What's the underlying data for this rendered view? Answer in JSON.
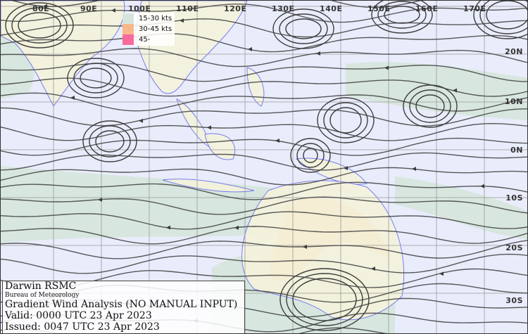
{
  "map": {
    "longitude_labels": [
      "80E",
      "90E",
      "100E",
      "110E",
      "120E",
      "130E",
      "140E",
      "150E",
      "160E",
      "170E"
    ],
    "latitude_labels": [
      "20N",
      "10N",
      "0N",
      "10S",
      "20S",
      "30S"
    ],
    "colors": {
      "ocean": "#e9ecfb",
      "land": "#f5f3dc",
      "coast": "#6b72f0",
      "streamline": "#3a3a3a",
      "grid": "#999999"
    }
  },
  "legend": {
    "items": [
      {
        "label": "15-30 kts",
        "color": "#d5e5dc"
      },
      {
        "label": "30-45 kts",
        "color": "#f7b88c"
      },
      {
        "label": "45-",
        "color": "#f76a9b"
      }
    ]
  },
  "info": {
    "centre": "Darwin RSMC",
    "agency": "Bureau of Meteorology",
    "product": "Gradient Wind Analysis (NO MANUAL INPUT)",
    "valid": "Valid:   0000 UTC 23 Apr 2023",
    "issued": "Issued: 0047 UTC 23 Apr 2023"
  }
}
